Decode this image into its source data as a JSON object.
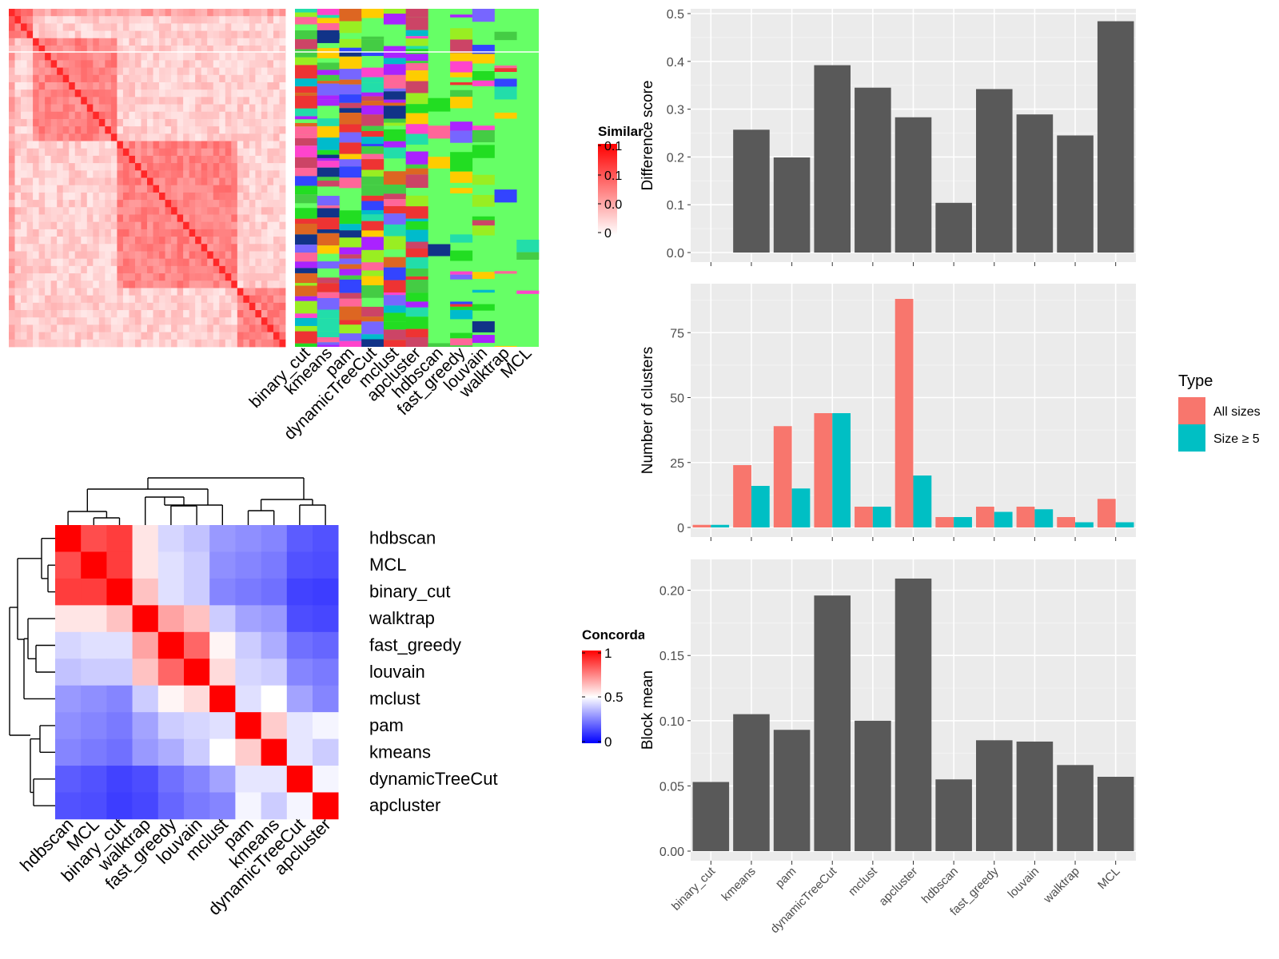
{
  "methods": [
    "binary_cut",
    "kmeans",
    "pam",
    "dynamicTreeCut",
    "mclust",
    "apcluster",
    "hdbscan",
    "fast_greedy",
    "louvain",
    "walktrap",
    "MCL"
  ],
  "similarity_heatmap": {
    "legend_title": "Similarity",
    "legend_ticks": [
      "0.1",
      "0.1",
      "0.0",
      "0"
    ],
    "colors": {
      "high": "#ff0000",
      "low": "#ffffff"
    },
    "partition_colors": [
      "#66ff66",
      "#ff44cc",
      "#cc4466",
      "#22dd22",
      "#ee3333",
      "#3344ff",
      "#22ddaa",
      "#ffcc00",
      "#aa22ff",
      "#00bbcc",
      "#dd6622",
      "#113388",
      "#ff6699",
      "#99ee22",
      "#44cc44",
      "#7766ff"
    ]
  },
  "concordance_heatmap": {
    "legend_title": "Concordance",
    "legend_ticks": [
      "1",
      "0.5",
      "0"
    ],
    "colors": {
      "high": "#ff0000",
      "mid": "#ffffff",
      "low": "#0000ff"
    },
    "order": [
      "hdbscan",
      "MCL",
      "binary_cut",
      "walktrap",
      "fast_greedy",
      "louvain",
      "mclust",
      "pam",
      "kmeans",
      "dynamicTreeCut",
      "apcluster"
    ],
    "matrix": [
      [
        1.0,
        0.85,
        0.88,
        0.55,
        0.42,
        0.38,
        0.3,
        0.28,
        0.26,
        0.18,
        0.16
      ],
      [
        0.85,
        1.0,
        0.88,
        0.55,
        0.44,
        0.4,
        0.28,
        0.26,
        0.24,
        0.16,
        0.15
      ],
      [
        0.88,
        0.88,
        1.0,
        0.62,
        0.44,
        0.4,
        0.26,
        0.24,
        0.22,
        0.13,
        0.12
      ],
      [
        0.55,
        0.55,
        0.62,
        1.0,
        0.68,
        0.62,
        0.4,
        0.32,
        0.3,
        0.15,
        0.14
      ],
      [
        0.42,
        0.44,
        0.44,
        0.68,
        1.0,
        0.8,
        0.52,
        0.4,
        0.34,
        0.22,
        0.2
      ],
      [
        0.38,
        0.4,
        0.4,
        0.62,
        0.8,
        1.0,
        0.57,
        0.42,
        0.4,
        0.26,
        0.24
      ],
      [
        0.3,
        0.28,
        0.26,
        0.4,
        0.52,
        0.57,
        1.0,
        0.44,
        0.5,
        0.32,
        0.26
      ],
      [
        0.28,
        0.26,
        0.24,
        0.32,
        0.4,
        0.42,
        0.44,
        1.0,
        0.6,
        0.45,
        0.48
      ],
      [
        0.26,
        0.24,
        0.22,
        0.3,
        0.34,
        0.4,
        0.5,
        0.6,
        1.0,
        0.45,
        0.4
      ],
      [
        0.18,
        0.16,
        0.13,
        0.15,
        0.22,
        0.26,
        0.32,
        0.45,
        0.45,
        1.0,
        0.48
      ],
      [
        0.16,
        0.15,
        0.12,
        0.14,
        0.2,
        0.24,
        0.26,
        0.48,
        0.4,
        0.48,
        1.0
      ]
    ]
  },
  "chart_data": [
    {
      "type": "bar",
      "categories": [
        "binary_cut",
        "kmeans",
        "pam",
        "dynamicTreeCut",
        "mclust",
        "apcluster",
        "hdbscan",
        "fast_greedy",
        "louvain",
        "walktrap",
        "MCL"
      ],
      "values": [
        0,
        0.257,
        0.199,
        0.392,
        0.345,
        0.283,
        0.104,
        0.342,
        0.289,
        0.245,
        0.484
      ],
      "title": "",
      "xlabel": "",
      "ylabel": "Difference score",
      "ylim": [
        0,
        0.5
      ],
      "yticks": [
        "0.0",
        "0.1",
        "0.2",
        "0.3",
        "0.4",
        "0.5"
      ],
      "grid": true,
      "show_x_labels": false,
      "colors": {
        "bar": "#595959",
        "panel": "#ebebeb",
        "grid": "#ffffff"
      }
    },
    {
      "type": "bar",
      "categories": [
        "binary_cut",
        "kmeans",
        "pam",
        "dynamicTreeCut",
        "mclust",
        "apcluster",
        "hdbscan",
        "fast_greedy",
        "louvain",
        "walktrap",
        "MCL"
      ],
      "series": [
        {
          "name": "All sizes",
          "values": [
            1,
            24,
            39,
            44,
            8,
            88,
            4,
            8,
            8,
            4,
            11
          ],
          "color": "#f8766d"
        },
        {
          "name": "Size ≥ 5",
          "values": [
            1,
            16,
            15,
            44,
            8,
            20,
            4,
            6,
            7,
            2,
            2
          ],
          "color": "#00bfc4"
        }
      ],
      "title": "",
      "xlabel": "",
      "ylabel": "Number of clusters",
      "ylim": [
        0,
        92
      ],
      "yticks": [
        "0",
        "25",
        "50",
        "75"
      ],
      "grid": true,
      "show_x_labels": false,
      "legend_title": "Type",
      "legend_position": "right",
      "colors": {
        "panel": "#ebebeb",
        "grid": "#ffffff"
      }
    },
    {
      "type": "bar",
      "categories": [
        "binary_cut",
        "kmeans",
        "pam",
        "dynamicTreeCut",
        "mclust",
        "apcluster",
        "hdbscan",
        "fast_greedy",
        "louvain",
        "walktrap",
        "MCL"
      ],
      "values": [
        0.053,
        0.105,
        0.093,
        0.196,
        0.1,
        0.209,
        0.055,
        0.085,
        0.084,
        0.066,
        0.057
      ],
      "title": "",
      "xlabel": "",
      "ylabel": "Block mean",
      "ylim": [
        0,
        0.22
      ],
      "yticks": [
        "0.00",
        "0.05",
        "0.10",
        "0.15",
        "0.20"
      ],
      "grid": true,
      "show_x_labels": true,
      "colors": {
        "bar": "#595959",
        "panel": "#ebebeb",
        "grid": "#ffffff"
      }
    }
  ]
}
